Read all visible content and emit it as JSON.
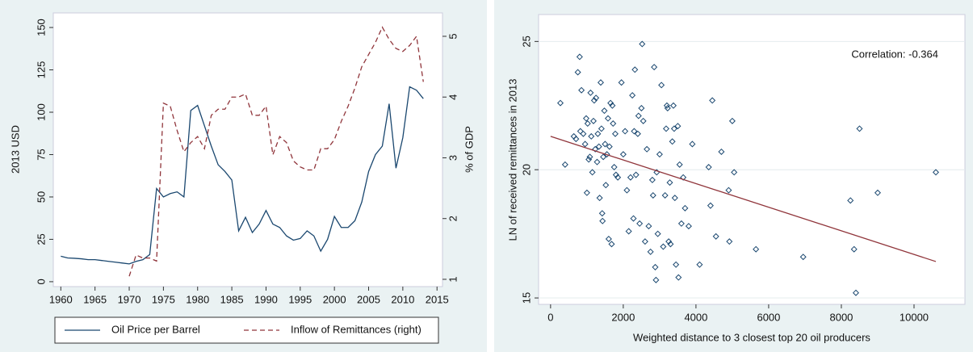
{
  "chart_data": [
    {
      "type": "line",
      "x": [
        1960,
        1961,
        1962,
        1963,
        1964,
        1965,
        1966,
        1967,
        1968,
        1969,
        1970,
        1971,
        1972,
        1973,
        1974,
        1975,
        1976,
        1977,
        1978,
        1979,
        1980,
        1981,
        1982,
        1983,
        1984,
        1985,
        1986,
        1987,
        1988,
        1989,
        1990,
        1991,
        1992,
        1993,
        1994,
        1995,
        1996,
        1997,
        1998,
        1999,
        2000,
        2001,
        2002,
        2003,
        2004,
        2005,
        2006,
        2007,
        2008,
        2009,
        2010,
        2011,
        2012,
        2013
      ],
      "series": [
        {
          "name": "Oil Price per Barrel",
          "color": "#1a476f",
          "values": [
            15,
            14,
            13.8,
            13.5,
            13,
            13,
            12.5,
            12,
            11.5,
            11,
            10.5,
            12,
            13,
            16,
            55,
            50,
            52,
            53,
            50,
            101,
            104,
            92,
            80,
            69,
            65,
            60,
            30,
            38,
            29,
            34,
            42,
            34,
            32,
            27,
            24.5,
            25.5,
            30,
            27,
            18,
            25,
            38.5,
            32,
            32,
            36,
            47,
            65,
            75,
            80,
            105,
            67,
            85,
            115,
            113,
            108
          ]
        },
        {
          "name": "Inflow of Remittances (right)",
          "color": "#90353b",
          "axis": "y2",
          "dashed": true,
          "values": [
            null,
            null,
            null,
            null,
            null,
            null,
            null,
            null,
            null,
            null,
            1.05,
            1.4,
            1.35,
            1.35,
            1.3,
            3.9,
            3.85,
            3.45,
            3.1,
            3.25,
            3.35,
            3.15,
            3.7,
            3.8,
            3.8,
            4.0,
            4.0,
            4.05,
            3.7,
            3.7,
            3.85,
            3.05,
            3.35,
            3.25,
            2.95,
            2.85,
            2.8,
            2.8,
            3.15,
            3.15,
            3.3,
            3.6,
            3.85,
            4.15,
            4.5,
            4.7,
            4.9,
            5.15,
            4.95,
            4.8,
            4.75,
            4.85,
            5.0,
            4.25
          ]
        }
      ],
      "ylabel": "2013 USD",
      "y2label": "% of GDP",
      "xlim": [
        1958.9,
        2015.8
      ],
      "xticks": [
        1960,
        1965,
        1970,
        1975,
        1980,
        1985,
        1990,
        1995,
        2000,
        2005,
        2010,
        2015
      ],
      "ylim": [
        -2.9,
        158.6
      ],
      "yticks": [
        0,
        25,
        50,
        75,
        100,
        125,
        150
      ],
      "y2lim": [
        0.88,
        5.385
      ],
      "y2ticks": [
        1,
        2,
        3,
        4,
        5
      ],
      "grid": false,
      "legend": "bottom"
    },
    {
      "type": "scatter",
      "xlabel": "Weighted distance to 3 closest top 20 oil producers",
      "ylabel": "LN of received remittances in 2013",
      "annotation": "Correlation: -0.364",
      "color": "#1a476f",
      "x": [
        270,
        400,
        640,
        700,
        750,
        800,
        820,
        850,
        900,
        950,
        980,
        1000,
        1020,
        1050,
        1080,
        1100,
        1120,
        1150,
        1180,
        1200,
        1230,
        1250,
        1280,
        1300,
        1330,
        1350,
        1380,
        1400,
        1420,
        1430,
        1450,
        1480,
        1500,
        1520,
        1550,
        1580,
        1600,
        1620,
        1650,
        1680,
        1700,
        1720,
        1750,
        1780,
        1800,
        1850,
        1950,
        2000,
        2050,
        2100,
        2150,
        2200,
        2250,
        2280,
        2300,
        2320,
        2350,
        2400,
        2420,
        2450,
        2500,
        2520,
        2550,
        2600,
        2650,
        2700,
        2750,
        2800,
        2820,
        2850,
        2880,
        2900,
        2920,
        2950,
        3000,
        3050,
        3100,
        3150,
        3180,
        3200,
        3220,
        3250,
        3280,
        3300,
        3350,
        3380,
        3400,
        3420,
        3450,
        3500,
        3520,
        3550,
        3600,
        3650,
        3700,
        3800,
        3900,
        4100,
        4350,
        4400,
        4450,
        4550,
        4700,
        4900,
        4920,
        5000,
        5050,
        5650,
        6950,
        8250,
        8350,
        8400,
        8500,
        9000,
        10600
      ],
      "values": [
        22.6,
        20.2,
        21.3,
        21.2,
        23.8,
        24.4,
        21.5,
        23.1,
        21.4,
        21.0,
        22.0,
        19.1,
        21.8,
        20.4,
        20.5,
        23.0,
        21.3,
        19.9,
        21.9,
        22.7,
        20.8,
        22.8,
        20.3,
        21.4,
        20.9,
        18.9,
        23.4,
        21.6,
        18.3,
        18.0,
        20.5,
        22.3,
        21.0,
        19.4,
        20.6,
        22.0,
        17.3,
        20.9,
        22.6,
        17.1,
        22.5,
        21.8,
        20.1,
        21.4,
        19.8,
        19.7,
        23.4,
        20.6,
        21.5,
        19.2,
        17.6,
        19.7,
        22.9,
        18.1,
        21.5,
        23.9,
        19.8,
        21.4,
        22.1,
        17.9,
        22.4,
        24.9,
        21.9,
        17.2,
        20.8,
        17.8,
        16.8,
        19.6,
        19.0,
        24.0,
        16.2,
        15.7,
        19.9,
        17.5,
        20.6,
        23.3,
        17.0,
        19.0,
        21.6,
        22.5,
        22.4,
        17.2,
        19.5,
        17.1,
        21.1,
        22.5,
        21.6,
        18.9,
        16.3,
        21.7,
        15.8,
        20.2,
        17.9,
        19.7,
        18.5,
        17.8,
        21.0,
        16.3,
        20.1,
        18.6,
        22.7,
        17.4,
        20.7,
        19.2,
        17.2,
        21.9,
        19.9,
        16.9,
        16.6,
        18.8,
        16.9,
        15.2,
        21.6,
        19.1,
        19.9
      ],
      "fit": {
        "color": "#90353b",
        "x": [
          0,
          10600
        ],
        "values": [
          21.3,
          16.42
        ]
      },
      "xlim": [
        -330,
        11400
      ],
      "xticks": [
        0,
        2000,
        4000,
        6000,
        8000,
        10000
      ],
      "ylim": [
        14.75,
        26.05
      ],
      "yticks": [
        15,
        20,
        25
      ],
      "grid": true
    }
  ]
}
